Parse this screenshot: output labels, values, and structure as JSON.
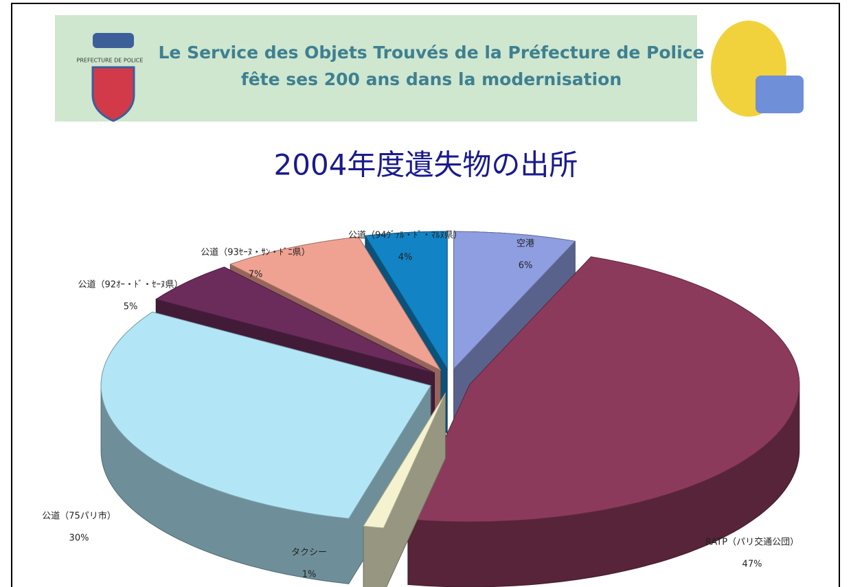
{
  "banner": {
    "logo_text": "PREFECTURE DE POLICE",
    "line1": "Le Service des Objets Trouvés de la Préfecture de Police",
    "line2": "fête ses 200 ans dans la modernisation"
  },
  "chart_data": {
    "type": "pie",
    "title": "2004年度遺失物の出所",
    "categories": [
      "空港",
      "RATP（パリ交通公団）",
      "タクシー",
      "公道（75パリ市）",
      "公道（92ｵｰ・ﾄﾞ・ｾｰﾇ県）",
      "公道（93ｾｰﾇ・ｻﾝ・ﾄﾞﾆ県）",
      "公道（94ｳﾞｧﾙ・ﾄﾞ・ﾏﾙﾇ県）"
    ],
    "values": [
      6,
      47,
      1,
      30,
      5,
      7,
      4
    ],
    "value_labels": [
      "6%",
      "47%",
      "1%",
      "30%",
      "5%",
      "7%",
      "4%"
    ],
    "colors": [
      "#8f9ee0",
      "#8c3a5c",
      "#f4f2cf",
      "#b2e6f6",
      "#6b2c5c",
      "#f0a292",
      "#1283c4"
    ]
  }
}
